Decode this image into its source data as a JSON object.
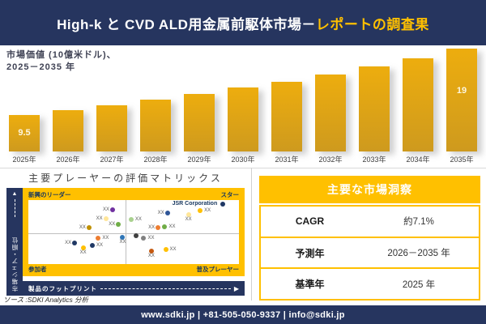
{
  "header": {
    "title_main": "High-k と CVD ALD用金属前駆体市場－",
    "title_accent": "レポートの調査果"
  },
  "chart_data": [
    {
      "type": "bar",
      "title": "市場価値 (10億米ドル)、2025－2035 年",
      "title_lines": [
        "市場価値 (10億米ドル)、",
        "2025－2035 年"
      ],
      "categories": [
        "2025年",
        "2026年",
        "2027年",
        "2028年",
        "2029年",
        "2030年",
        "2031年",
        "2032年",
        "2033年",
        "2034年",
        "2035年"
      ],
      "values": [
        9.5,
        10.2,
        10.9,
        11.7,
        12.5,
        13.4,
        14.3,
        15.3,
        16.4,
        17.6,
        19
      ],
      "bar_labels": [
        "9.5",
        "",
        "",
        "",
        "",
        "",
        "",
        "",
        "",
        "",
        "19"
      ],
      "unit": "10億米ドル",
      "ylim": [
        9.5,
        19
      ],
      "bar_color": "#DCA216",
      "grid": false
    },
    {
      "type": "scatter",
      "title": "主要プレーヤーの評価マトリックス",
      "xlabel": "製品のフットプリント",
      "ylabel": "市場シェア・順位",
      "quadrants": {
        "top_left": "新興のリーダー",
        "top_right": "スター",
        "bottom_left": "参加者",
        "bottom_right": "普及プレーヤー"
      },
      "highlight_company": "JSR Corporation",
      "points": [
        {
          "x": 40.0,
          "y": 15.0,
          "color": "#7030A0",
          "label": "XX",
          "pos": "left"
        },
        {
          "x": 36.8,
          "y": 28.8,
          "color": "#FFE699",
          "label": "XX",
          "pos": "left"
        },
        {
          "x": 28.8,
          "y": 42.5,
          "color": "#BF9000",
          "label": "XX",
          "pos": "left"
        },
        {
          "x": 42.8,
          "y": 37.5,
          "color": "#70AD47",
          "label": "XX",
          "pos": "left"
        },
        {
          "x": 92.4,
          "y": 6.0,
          "color": "#1F3864",
          "label": "JSR Corporation",
          "pos": "left"
        },
        {
          "x": 48.8,
          "y": 30.0,
          "color": "#A9D18E",
          "label": "XX",
          "pos": "right"
        },
        {
          "x": 66.0,
          "y": 20.0,
          "color": "#2E5597",
          "label": "XX",
          "pos": "left"
        },
        {
          "x": 76.0,
          "y": 22.5,
          "color": "#FFE699",
          "label": "XX",
          "pos": "below"
        },
        {
          "x": 81.6,
          "y": 16.2,
          "color": "#FFC000",
          "label": "XX",
          "pos": "right"
        },
        {
          "x": 61.6,
          "y": 42.5,
          "color": "#ED7D31",
          "label": "XX",
          "pos": "left"
        },
        {
          "x": 64.8,
          "y": 41.2,
          "color": "#70AD47",
          "label": "XX",
          "pos": "right"
        },
        {
          "x": 33.2,
          "y": 60.0,
          "color": "#ED7D31",
          "label": "XX",
          "pos": "right"
        },
        {
          "x": 44.8,
          "y": 58.8,
          "color": "#2E75B6",
          "label": "XX",
          "pos": "below"
        },
        {
          "x": 22.0,
          "y": 67.5,
          "color": "#203864",
          "label": "XX",
          "pos": "left"
        },
        {
          "x": 30.4,
          "y": 71.2,
          "color": "#203864",
          "label": "XX",
          "pos": "right"
        },
        {
          "x": 26.0,
          "y": 75.0,
          "color": "#FFC000",
          "label": "XX",
          "pos": "below"
        },
        {
          "x": 51.2,
          "y": 56.2,
          "color": "#404040",
          "label": "",
          "pos": "none"
        },
        {
          "x": 54.8,
          "y": 60.0,
          "color": "#808080",
          "label": "XX",
          "pos": "right"
        },
        {
          "x": 58.4,
          "y": 80.0,
          "color": "#C55A11",
          "label": "XX",
          "pos": "below"
        },
        {
          "x": 65.2,
          "y": 77.5,
          "color": "#FFC000",
          "label": "XX",
          "pos": "right"
        }
      ]
    }
  ],
  "insights": {
    "title": "主要な市場洞察",
    "rows": [
      {
        "label": "CAGR",
        "value": "約7.1%"
      },
      {
        "label": "予測年",
        "value": "2026－2035 年"
      },
      {
        "label": "基準年",
        "value": "2025 年"
      }
    ]
  },
  "source": {
    "text": "ソース :SDKI Analytics 分析"
  },
  "footer": {
    "text": "www.sdki.jp | +81-505-050-9337 | info@sdki.jp"
  },
  "colors": {
    "navy": "#26355F",
    "gold": "#FFC000",
    "bar_gold": "#DCA216",
    "quadrant_text": "#17375E"
  }
}
